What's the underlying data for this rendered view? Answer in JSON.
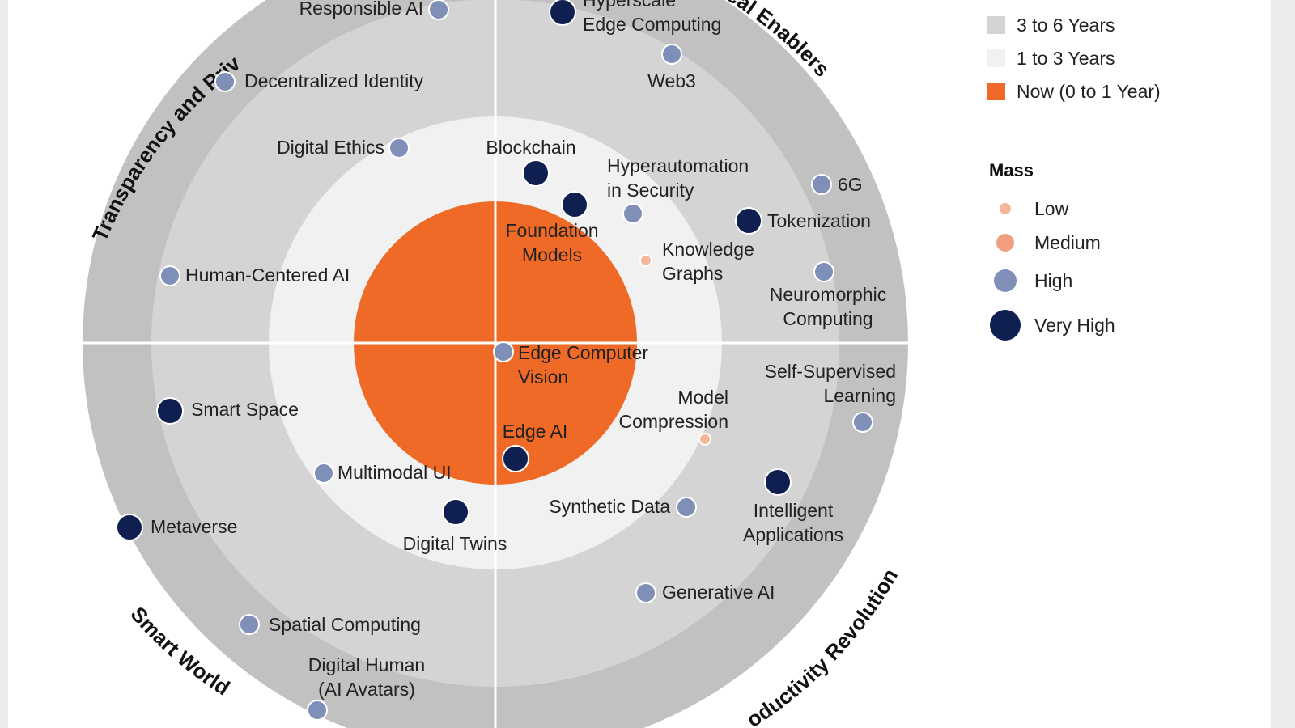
{
  "colors": {
    "now": "#ee6a26",
    "one_to_three": "#f1f1f1",
    "three_to_six": "#d4d4d4",
    "six_to_eight": "#c1c1c1",
    "mass_low": "#f5b79a",
    "mass_medium": "#f0a07e",
    "mass_high": "#7f8fb8",
    "mass_very_high": "#0f2050"
  },
  "quadrants": {
    "top_left": "Transparency and Priv",
    "top_right": "ical Enablers",
    "bottom_left": "Smart World",
    "bottom_right": "oductivity Revolution"
  },
  "legend": {
    "ranges": [
      {
        "label": "3 to 6 Years",
        "color": "#d4d4d4"
      },
      {
        "label": "1 to 3 Years",
        "color": "#f1f1f1"
      },
      {
        "label": "Now (0 to 1 Year)",
        "color": "#ee6a26"
      }
    ],
    "mass_title": "Mass",
    "mass": [
      {
        "label": "Low",
        "level": "low",
        "color": "#f5b79a"
      },
      {
        "label": "Medium",
        "level": "medium",
        "color": "#f0a07e"
      },
      {
        "label": "High",
        "level": "high",
        "color": "#7f8fb8"
      },
      {
        "label": "Very High",
        "level": "very-high",
        "color": "#0f2050"
      }
    ]
  },
  "technologies": [
    {
      "name": "Responsible AI",
      "mass": "high"
    },
    {
      "name": "Hyperscale Edge Computing",
      "lines": [
        "Hyperscale",
        "Edge Computing"
      ],
      "mass": "very-high"
    },
    {
      "name": "Web3",
      "mass": "high"
    },
    {
      "name": "Decentralized Identity",
      "mass": "high"
    },
    {
      "name": "Digital Ethics",
      "mass": "high"
    },
    {
      "name": "Blockchain",
      "mass": "very-high"
    },
    {
      "name": "Foundation Models",
      "lines": [
        "Foundation",
        "Models"
      ],
      "mass": "very-high"
    },
    {
      "name": "Hyperautomation in Security",
      "lines": [
        "Hyperautomation",
        "in Security"
      ],
      "mass": "high"
    },
    {
      "name": "6G",
      "mass": "high"
    },
    {
      "name": "Tokenization",
      "mass": "very-high"
    },
    {
      "name": "Knowledge Graphs",
      "lines": [
        "Knowledge",
        "Graphs"
      ],
      "mass": "low"
    },
    {
      "name": "Neuromorphic Computing",
      "lines": [
        "Neuromorphic",
        "Computing"
      ],
      "mass": "high"
    },
    {
      "name": "Human-Centered AI",
      "mass": "high"
    },
    {
      "name": "Edge Computer Vision",
      "lines": [
        "Edge Computer",
        "Vision"
      ],
      "mass": "high"
    },
    {
      "name": "Self-Supervised Learning",
      "lines": [
        "Self-Supervised",
        "Learning"
      ],
      "mass": "high"
    },
    {
      "name": "Model Compression",
      "lines": [
        "Model",
        "Compression"
      ],
      "mass": "low"
    },
    {
      "name": "Smart Space",
      "mass": "very-high"
    },
    {
      "name": "Edge AI",
      "mass": "very-high"
    },
    {
      "name": "Multimodal UI",
      "mass": "high"
    },
    {
      "name": "Intelligent Applications",
      "lines": [
        "Intelligent",
        "Applications"
      ],
      "mass": "very-high"
    },
    {
      "name": "Synthetic Data",
      "mass": "high"
    },
    {
      "name": "Digital Twins",
      "mass": "very-high"
    },
    {
      "name": "Metaverse",
      "mass": "very-high"
    },
    {
      "name": "Generative AI",
      "mass": "high"
    },
    {
      "name": "Spatial Computing",
      "mass": "high"
    },
    {
      "name": "Digital Human (AI Avatars)",
      "lines": [
        "Digital Human",
        "(AI Avatars)"
      ],
      "mass": "high"
    }
  ]
}
